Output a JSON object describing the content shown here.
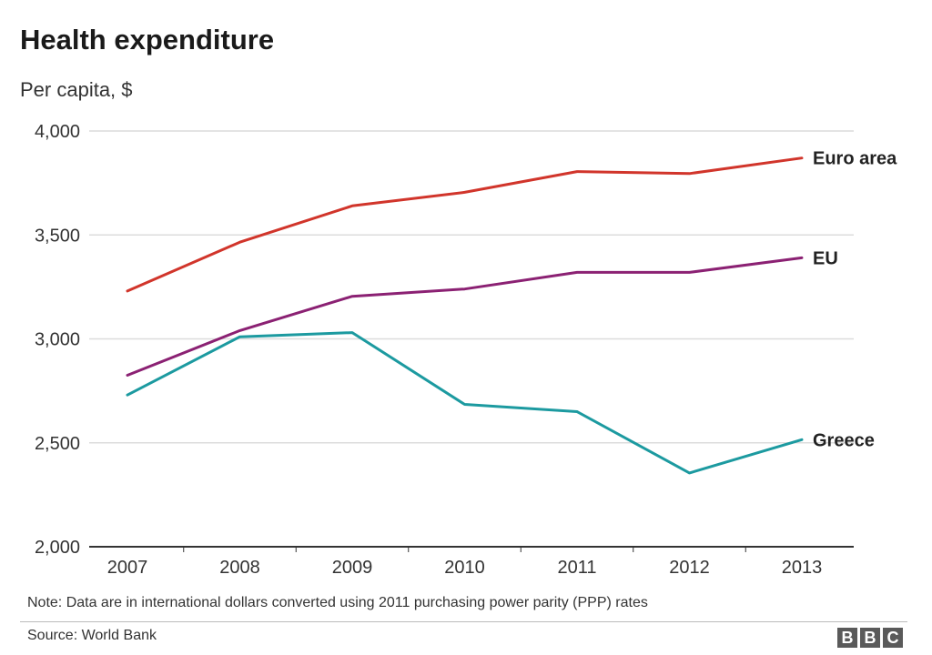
{
  "title": "Health expenditure",
  "subtitle": "Per capita, $",
  "note": "Note: Data are in international dollars converted using 2011 purchasing power parity (PPP) rates",
  "source": "Source: World Bank",
  "logo": [
    "B",
    "B",
    "C"
  ],
  "chart_data": {
    "type": "line",
    "title": "Health expenditure",
    "subtitle": "Per capita, $",
    "xlabel": "",
    "ylabel": "",
    "x": [
      "2007",
      "2008",
      "2009",
      "2010",
      "2011",
      "2012",
      "2013"
    ],
    "ylim": [
      2000,
      4000
    ],
    "yticks": [
      2000,
      2500,
      3000,
      3500,
      4000
    ],
    "ytick_labels": [
      "2,000",
      "2,500",
      "3,000",
      "3,500",
      "4,000"
    ],
    "grid": true,
    "legend": "direct labels at line ends",
    "series": [
      {
        "name": "Euro area",
        "color": "#d1352b",
        "values": [
          3230,
          3465,
          3640,
          3705,
          3805,
          3795,
          3870
        ]
      },
      {
        "name": "EU",
        "color": "#8b2173",
        "values": [
          2825,
          3040,
          3205,
          3240,
          3320,
          3320,
          3390
        ]
      },
      {
        "name": "Greece",
        "color": "#1c9aa0",
        "values": [
          2730,
          3010,
          3030,
          2685,
          2650,
          2355,
          2515
        ]
      }
    ]
  }
}
